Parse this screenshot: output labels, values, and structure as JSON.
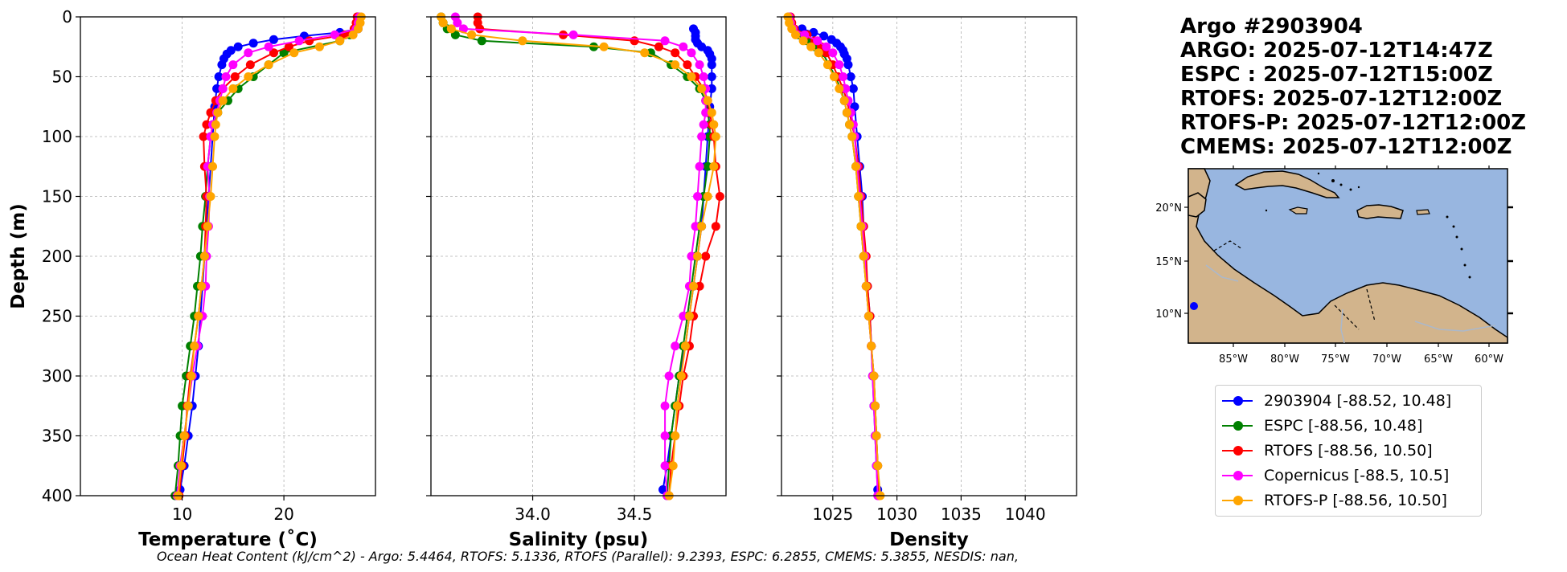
{
  "chart_data": [
    {
      "type": "line",
      "id": "temperature",
      "xlabel": "Temperature (˚C)",
      "ylabel": "Depth (m)",
      "xlim": [
        0,
        29
      ],
      "ylim": [
        400,
        0
      ],
      "xticks": [
        10,
        20
      ],
      "yticks": [
        0,
        50,
        100,
        150,
        200,
        250,
        300,
        350,
        400
      ],
      "grid": true,
      "series": [
        {
          "name": "2903904",
          "color": "#0000ff",
          "depth": [
            10,
            13,
            16,
            19,
            22,
            25,
            28,
            31,
            35,
            40,
            50,
            60,
            75,
            100,
            125,
            150,
            175,
            200,
            225,
            250,
            275,
            300,
            325,
            350,
            375,
            395
          ],
          "values": [
            27.3,
            25.5,
            22,
            19,
            17,
            15.5,
            14.8,
            14.4,
            14.1,
            13.9,
            13.6,
            13.4,
            13.2,
            13.0,
            12.8,
            12.6,
            12.4,
            12.2,
            12.0,
            11.8,
            11.6,
            11.3,
            11.0,
            10.6,
            10.2,
            9.8
          ]
        },
        {
          "name": "ESPC",
          "color": "#008000",
          "depth": [
            0,
            5,
            10,
            15,
            20,
            30,
            40,
            50,
            60,
            70,
            80,
            90,
            100,
            125,
            150,
            175,
            200,
            225,
            250,
            275,
            300,
            325,
            350,
            375,
            400
          ],
          "values": [
            27.3,
            27.2,
            27.0,
            26.5,
            25.5,
            20.0,
            18.5,
            17.0,
            15.5,
            14.5,
            13.5,
            13.0,
            12.8,
            12.5,
            12.3,
            12.0,
            11.8,
            11.5,
            11.2,
            10.8,
            10.4,
            10.0,
            9.8,
            9.6,
            9.3
          ]
        },
        {
          "name": "RTOFS",
          "color": "#ff0000",
          "depth": [
            0,
            5,
            10,
            15,
            20,
            25,
            30,
            40,
            50,
            60,
            70,
            80,
            90,
            100,
            125,
            150,
            175,
            200,
            225,
            250,
            275,
            300,
            325,
            350,
            375,
            400
          ],
          "values": [
            27.2,
            27.1,
            26.9,
            26.0,
            22.5,
            20.5,
            19.0,
            16.7,
            15.2,
            14.0,
            13.3,
            12.8,
            12.4,
            12.1,
            12.2,
            12.4,
            12.3,
            12.2,
            11.9,
            11.6,
            11.2,
            10.8,
            10.5,
            10.3,
            10.0,
            9.7
          ]
        },
        {
          "name": "Copernicus",
          "color": "#ff00ff",
          "depth": [
            0,
            5,
            10,
            15,
            20,
            25,
            30,
            40,
            50,
            60,
            70,
            80,
            90,
            100,
            125,
            150,
            175,
            200,
            225,
            250,
            275,
            300,
            325,
            350,
            375,
            400
          ],
          "values": [
            27.4,
            27.3,
            27.1,
            25.0,
            21.5,
            18.5,
            16.5,
            15.0,
            14.3,
            14.0,
            13.7,
            13.4,
            13.0,
            12.8,
            12.5,
            12.7,
            12.6,
            12.4,
            12.3,
            12.0,
            11.5,
            11.0,
            10.6,
            10.2,
            9.8,
            9.5
          ]
        },
        {
          "name": "RTOFS-P",
          "color": "#ffa500",
          "depth": [
            0,
            5,
            10,
            15,
            20,
            25,
            30,
            40,
            50,
            60,
            70,
            80,
            90,
            100,
            125,
            150,
            175,
            200,
            225,
            250,
            275,
            300,
            325,
            350,
            375,
            400
          ],
          "values": [
            27.6,
            27.5,
            27.3,
            26.8,
            25.5,
            23.5,
            21.0,
            18.5,
            16.5,
            15.0,
            14.0,
            13.5,
            13.3,
            13.2,
            13.0,
            12.8,
            12.5,
            12.2,
            11.9,
            11.6,
            11.2,
            10.9,
            10.6,
            10.2,
            9.9,
            9.6
          ]
        }
      ]
    },
    {
      "type": "line",
      "id": "salinity",
      "xlabel": "Salinity (psu)",
      "xlim": [
        33.5,
        34.95
      ],
      "ylim": [
        400,
        0
      ],
      "xticks": [
        34.0,
        34.5
      ],
      "yticks": [
        0,
        50,
        100,
        150,
        200,
        250,
        300,
        350,
        400
      ],
      "grid": true,
      "series": [
        {
          "name": "2903904",
          "color": "#0000ff",
          "depth": [
            10,
            13,
            16,
            19,
            22,
            25,
            28,
            31,
            35,
            40,
            50,
            60,
            75,
            100,
            125,
            150,
            175,
            200,
            225,
            250,
            275,
            300,
            325,
            350,
            375,
            395
          ],
          "values": [
            34.79,
            34.8,
            34.8,
            34.8,
            34.81,
            34.83,
            34.86,
            34.87,
            34.88,
            34.88,
            34.88,
            34.88,
            34.87,
            34.86,
            34.85,
            34.84,
            34.83,
            34.81,
            34.79,
            34.77,
            34.75,
            34.72,
            34.7,
            34.68,
            34.66,
            34.64
          ]
        },
        {
          "name": "ESPC",
          "color": "#008000",
          "depth": [
            0,
            5,
            10,
            15,
            20,
            25,
            30,
            40,
            50,
            60,
            70,
            80,
            90,
            100,
            125,
            150,
            175,
            200,
            225,
            250,
            275,
            300,
            325,
            350,
            375,
            400
          ],
          "values": [
            33.55,
            33.56,
            33.58,
            33.62,
            33.75,
            34.3,
            34.58,
            34.68,
            34.76,
            34.82,
            34.85,
            34.86,
            34.87,
            34.87,
            34.86,
            34.84,
            34.82,
            34.8,
            34.78,
            34.76,
            34.74,
            34.72,
            34.7,
            34.68,
            34.67,
            34.66
          ]
        },
        {
          "name": "RTOFS",
          "color": "#ff0000",
          "depth": [
            0,
            5,
            10,
            15,
            20,
            25,
            30,
            40,
            50,
            60,
            70,
            80,
            90,
            100,
            125,
            150,
            175,
            200,
            225,
            250,
            275,
            300,
            325,
            350,
            375,
            400
          ],
          "values": [
            33.73,
            33.73,
            33.74,
            34.15,
            34.5,
            34.62,
            34.7,
            34.76,
            34.8,
            34.84,
            34.86,
            34.87,
            34.88,
            34.89,
            34.9,
            34.92,
            34.9,
            34.85,
            34.82,
            34.79,
            34.77,
            34.74,
            34.72,
            34.7,
            34.68,
            34.67
          ]
        },
        {
          "name": "Copernicus",
          "color": "#ff00ff",
          "depth": [
            0,
            5,
            10,
            15,
            20,
            25,
            30,
            40,
            50,
            60,
            70,
            80,
            90,
            100,
            125,
            150,
            175,
            200,
            225,
            250,
            275,
            300,
            325,
            350,
            375,
            400
          ],
          "values": [
            33.62,
            33.63,
            33.66,
            34.2,
            34.65,
            34.74,
            34.78,
            34.82,
            34.84,
            34.85,
            34.85,
            34.85,
            34.84,
            34.83,
            34.82,
            34.81,
            34.8,
            34.78,
            34.77,
            34.74,
            34.7,
            34.67,
            34.65,
            34.65,
            34.65,
            34.66
          ]
        },
        {
          "name": "RTOFS-P",
          "color": "#ffa500",
          "depth": [
            0,
            5,
            10,
            15,
            20,
            25,
            30,
            40,
            50,
            60,
            70,
            80,
            90,
            100,
            125,
            150,
            175,
            200,
            225,
            250,
            275,
            300,
            325,
            350,
            375,
            400
          ],
          "values": [
            33.55,
            33.56,
            33.6,
            33.7,
            33.95,
            34.35,
            34.55,
            34.7,
            34.78,
            34.83,
            34.86,
            34.88,
            34.89,
            34.9,
            34.89,
            34.86,
            34.83,
            34.81,
            34.79,
            34.77,
            34.75,
            34.73,
            34.71,
            34.7,
            34.69,
            34.67
          ]
        }
      ]
    },
    {
      "type": "line",
      "id": "density",
      "xlabel": "Density",
      "xlim": [
        1021,
        1044
      ],
      "ylim": [
        400,
        0
      ],
      "xticks": [
        1025,
        1030,
        1035,
        1040
      ],
      "yticks": [
        0,
        50,
        100,
        150,
        200,
        250,
        300,
        350,
        400
      ],
      "grid": true,
      "series": [
        {
          "name": "2903904",
          "color": "#0000ff",
          "depth": [
            10,
            13,
            16,
            19,
            22,
            25,
            28,
            31,
            35,
            40,
            50,
            60,
            75,
            100,
            125,
            150,
            175,
            200,
            225,
            250,
            275,
            300,
            325,
            350,
            375,
            395
          ],
          "values": [
            1022.6,
            1023.5,
            1024.3,
            1024.9,
            1025.3,
            1025.6,
            1025.8,
            1025.9,
            1026.1,
            1026.2,
            1026.4,
            1026.6,
            1026.7,
            1026.9,
            1027.1,
            1027.3,
            1027.4,
            1027.5,
            1027.7,
            1027.9,
            1028.0,
            1028.1,
            1028.2,
            1028.3,
            1028.4,
            1028.5
          ]
        },
        {
          "name": "ESPC",
          "color": "#008000",
          "depth": [
            0,
            5,
            10,
            15,
            20,
            25,
            30,
            40,
            50,
            60,
            70,
            80,
            90,
            100,
            125,
            150,
            175,
            200,
            225,
            250,
            275,
            300,
            325,
            350,
            375,
            400
          ],
          "values": [
            1021.6,
            1021.7,
            1021.9,
            1022.3,
            1023.0,
            1023.6,
            1024.2,
            1024.7,
            1025.2,
            1025.6,
            1025.9,
            1026.1,
            1026.3,
            1026.5,
            1026.8,
            1027.0,
            1027.2,
            1027.4,
            1027.6,
            1027.8,
            1028.0,
            1028.2,
            1028.3,
            1028.4,
            1028.5,
            1028.6
          ]
        },
        {
          "name": "RTOFS",
          "color": "#ff0000",
          "depth": [
            0,
            5,
            10,
            15,
            20,
            25,
            30,
            40,
            50,
            60,
            70,
            80,
            90,
            100,
            125,
            150,
            175,
            200,
            225,
            250,
            275,
            300,
            325,
            350,
            375,
            400
          ],
          "values": [
            1021.7,
            1021.8,
            1022.0,
            1023.0,
            1023.6,
            1024.1,
            1024.5,
            1025.0,
            1025.4,
            1025.8,
            1026.1,
            1026.3,
            1026.5,
            1026.7,
            1027.0,
            1027.2,
            1027.4,
            1027.6,
            1027.7,
            1027.9,
            1028.0,
            1028.2,
            1028.3,
            1028.4,
            1028.5,
            1028.6
          ]
        },
        {
          "name": "Copernicus",
          "color": "#ff00ff",
          "depth": [
            0,
            5,
            10,
            15,
            20,
            25,
            30,
            40,
            50,
            60,
            70,
            80,
            90,
            100,
            125,
            150,
            175,
            200,
            225,
            250,
            275,
            300,
            325,
            350,
            375,
            400
          ],
          "values": [
            1021.6,
            1021.7,
            1021.9,
            1022.8,
            1023.8,
            1024.5,
            1025.0,
            1025.5,
            1025.8,
            1026.0,
            1026.2,
            1026.4,
            1026.6,
            1026.7,
            1026.9,
            1027.1,
            1027.3,
            1027.5,
            1027.6,
            1027.8,
            1028.0,
            1028.1,
            1028.2,
            1028.3,
            1028.4,
            1028.5
          ]
        },
        {
          "name": "RTOFS-P",
          "color": "#ffa500",
          "depth": [
            0,
            5,
            10,
            15,
            20,
            25,
            30,
            40,
            50,
            60,
            70,
            80,
            90,
            100,
            125,
            150,
            175,
            200,
            225,
            250,
            275,
            300,
            325,
            350,
            375,
            400
          ],
          "values": [
            1021.5,
            1021.6,
            1021.8,
            1022.1,
            1022.7,
            1023.3,
            1023.9,
            1024.6,
            1025.1,
            1025.5,
            1025.9,
            1026.1,
            1026.3,
            1026.5,
            1026.8,
            1027.0,
            1027.2,
            1027.4,
            1027.6,
            1027.8,
            1028.0,
            1028.2,
            1028.3,
            1028.4,
            1028.5,
            1028.7
          ]
        }
      ]
    }
  ],
  "info": {
    "lines": [
      "Argo #2903904",
      "ARGO: 2025-07-12T14:47Z",
      "ESPC : 2025-07-12T15:00Z",
      "RTOFS: 2025-07-12T12:00Z",
      "RTOFS-P: 2025-07-12T12:00Z",
      "CMEMS: 2025-07-12T12:00Z"
    ]
  },
  "map": {
    "lat_ticks": [
      "20°N",
      "15°N",
      "10°N"
    ],
    "lon_ticks": [
      "85°W",
      "80°W",
      "75°W",
      "70°W",
      "65°W",
      "60°W"
    ],
    "ocean_color": "#98b6e0",
    "land_color": "#d2b48c",
    "marker_color": "#0000ff"
  },
  "legend": {
    "entries": [
      {
        "label": "2903904 [-88.52, 10.48]",
        "color": "#0000ff"
      },
      {
        "label": "ESPC [-88.56, 10.48]",
        "color": "#008000"
      },
      {
        "label": "RTOFS [-88.56, 10.50]",
        "color": "#ff0000"
      },
      {
        "label": "Copernicus [-88.5, 10.5]",
        "color": "#ff00ff"
      },
      {
        "label": "RTOFS-P [-88.56, 10.50]",
        "color": "#ffa500"
      }
    ]
  },
  "footer": {
    "ohc_text": "Ocean Heat Content (kJ/cm^2) - Argo: 5.4464,  RTOFS: 5.1336,  RTOFS (Parallel): 9.2393,  ESPC: 6.2855,  CMEMS: 5.3855,  NESDIS: nan,"
  }
}
